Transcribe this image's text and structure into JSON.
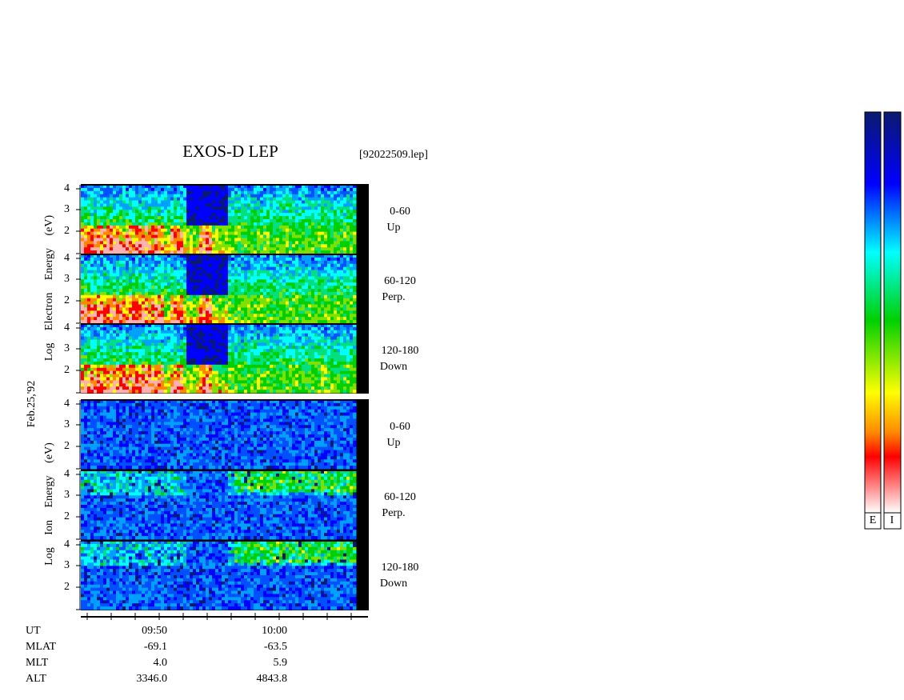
{
  "header": {
    "title": "EXOS-D LEP",
    "file": "[92022509.lep]"
  },
  "date": "Feb.25,'92",
  "electron_axis_label": "Log Electron Energy (eV)",
  "ion_axis_label": "Log Ion Energy (eV)",
  "panels": [
    {
      "range": "0-60",
      "direction": "Up",
      "ticks": [
        "4",
        "3",
        "2"
      ]
    },
    {
      "range": "60-120",
      "direction": "Perp.",
      "ticks": [
        "4",
        "3",
        "2"
      ]
    },
    {
      "range": "120-180",
      "direction": "Down",
      "ticks": [
        "4",
        "3",
        "2"
      ]
    },
    {
      "range": "0-60",
      "direction": "Up",
      "ticks": [
        "4",
        "3",
        "2"
      ]
    },
    {
      "range": "60-120",
      "direction": "Perp.",
      "ticks": [
        "4",
        "3",
        "2"
      ]
    },
    {
      "range": "120-180",
      "direction": "Down",
      "ticks": [
        "4",
        "3",
        "2"
      ]
    }
  ],
  "time_axis": {
    "label": "UT",
    "ticks": [
      "09:50",
      "10:00"
    ]
  },
  "ephemeris": [
    {
      "label": "MLAT",
      "values": [
        "-69.1",
        "-63.5"
      ]
    },
    {
      "label": "MLT",
      "values": [
        "4.0",
        "5.9"
      ]
    },
    {
      "label": "ALT",
      "values": [
        "3346.0",
        "4843.8"
      ]
    }
  ],
  "colorbars": [
    "E",
    "I"
  ]
}
